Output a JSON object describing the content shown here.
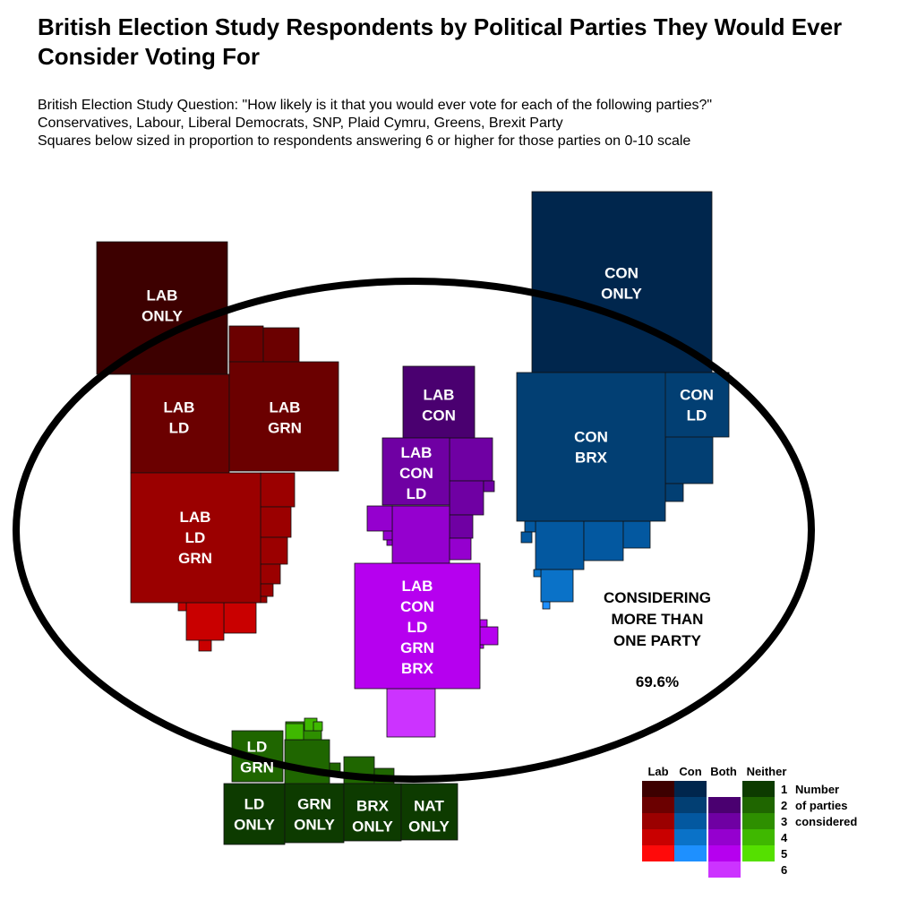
{
  "title": "British Election Study Respondents by Political Parties They Would Ever Consider Voting For",
  "subtitle": [
    "British Election Study Question: \"How likely is it that you would ever vote for each of the following parties?\"",
    "Conservatives, Labour, Liberal Democrats, SNP, Plaid Cymru, Greens, Brexit Party",
    "Squares below sized in proportion to respondents answering 6 or higher for those parties on 0-10 scale"
  ],
  "annotation": {
    "lines": [
      "CONSIDERING",
      "MORE THAN",
      "ONE PARTY"
    ],
    "value": "69.6%"
  },
  "legend": {
    "column_headers": [
      "Lab",
      "Con",
      "Both",
      "Neither"
    ],
    "row_labels": [
      "1",
      "2",
      "3",
      "4",
      "5",
      "6"
    ],
    "row_descriptions": [
      "Number",
      "of parties",
      "considered"
    ],
    "colors": {
      "Lab": [
        "#3d0000",
        "#6b0000",
        "#9b0000",
        "#c90000",
        "#ff0a0a",
        null
      ],
      "Con": [
        "#00264d",
        "#023f73",
        "#0358a0",
        "#0a72c8",
        "#1e90ff",
        null
      ],
      "Both": [
        null,
        "#4a0070",
        "#6f00a3",
        "#9500cf",
        "#b600ef",
        "#cc33ff"
      ],
      "Neither": [
        "#0d3b00",
        "#1f6600",
        "#2e8f00",
        "#3fb800",
        "#55e000",
        null
      ]
    }
  },
  "chart_data": {
    "type": "treemap",
    "measure": "respondents answering 6 or higher on 0-10 scale",
    "share_considering_more_than_one_party": 69.6,
    "labeled_groups": [
      {
        "label": "LAB ONLY",
        "color": "#3d0000",
        "parties": 1
      },
      {
        "label": "LAB LD",
        "color": "#6b0000",
        "parties": 2
      },
      {
        "label": "LAB GRN",
        "color": "#6b0000",
        "parties": 2
      },
      {
        "label": "LAB LD GRN",
        "color": "#9b0000",
        "parties": 3
      },
      {
        "label": "LAB CON",
        "color": "#4a0070",
        "parties": 2
      },
      {
        "label": "LAB CON LD",
        "color": "#6f00a3",
        "parties": 3
      },
      {
        "label": "LAB CON LD GRN BRX",
        "color": "#b600ef",
        "parties": 5
      },
      {
        "label": "CON ONLY",
        "color": "#00264d",
        "parties": 1
      },
      {
        "label": "CON LD",
        "color": "#023f73",
        "parties": 2
      },
      {
        "label": "CON BRX",
        "color": "#023f73",
        "parties": 2
      },
      {
        "label": "LD GRN",
        "color": "#1f6600",
        "parties": 2
      },
      {
        "label": "LD ONLY",
        "color": "#0d3b00",
        "parties": 1
      },
      {
        "label": "GRN ONLY",
        "color": "#0d3b00",
        "parties": 1
      },
      {
        "label": "BRX ONLY",
        "color": "#0d3b00",
        "parties": 1
      },
      {
        "label": "NAT ONLY",
        "color": "#0d3b00",
        "parties": 1
      }
    ]
  }
}
